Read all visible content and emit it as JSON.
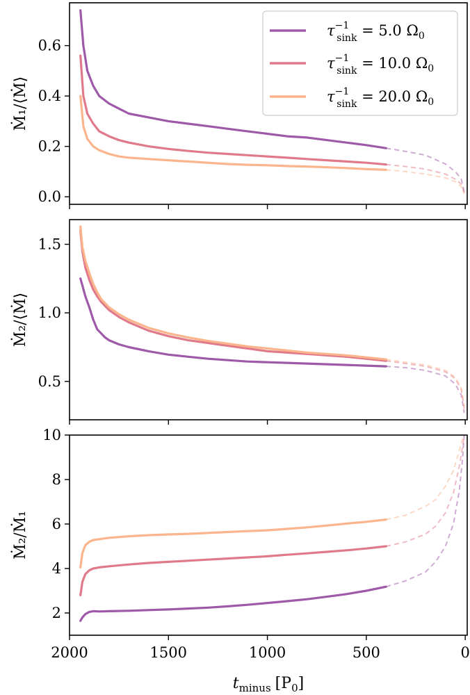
{
  "colors": {
    "tau_5": "#9e5aa8",
    "tau_10": "#e07a8a",
    "tau_20": "#fbb48c",
    "axes": "#000000",
    "background": "#ffffff"
  },
  "chart_data": [
    {
      "type": "line",
      "panel": "top",
      "ylabel": "Ṁ₁/⟨Ṁ⟩",
      "xlim": [
        2000,
        -10
      ],
      "ylim": [
        -0.03,
        0.77
      ],
      "yticks": [
        0.0,
        0.2,
        0.4,
        0.6
      ],
      "ytick_labels": [
        "0.0",
        "0.2",
        "0.4",
        "0.6"
      ],
      "xticks": [
        2000,
        1500,
        1000,
        500,
        0
      ],
      "xtick_labels": [],
      "dashed_segment_start_x": 400,
      "series": [
        {
          "name": "τ_sink⁻¹ = 5.0 Ω₀",
          "color_key": "tau_5",
          "x": [
            1945,
            1930,
            1910,
            1880,
            1850,
            1800,
            1750,
            1700,
            1600,
            1500,
            1400,
            1300,
            1200,
            1100,
            1000,
            900,
            800,
            700,
            600,
            500,
            400,
            300,
            200,
            100,
            50,
            20,
            5
          ],
          "y": [
            0.74,
            0.6,
            0.5,
            0.44,
            0.4,
            0.37,
            0.35,
            0.33,
            0.315,
            0.3,
            0.29,
            0.28,
            0.27,
            0.26,
            0.25,
            0.24,
            0.235,
            0.225,
            0.215,
            0.205,
            0.193,
            0.18,
            0.165,
            0.13,
            0.1,
            0.07,
            0.02
          ]
        },
        {
          "name": "τ_sink⁻¹ = 10.0 Ω₀",
          "color_key": "tau_10",
          "x": [
            1945,
            1930,
            1910,
            1880,
            1850,
            1800,
            1750,
            1700,
            1600,
            1500,
            1400,
            1300,
            1200,
            1100,
            1000,
            900,
            800,
            700,
            600,
            500,
            400,
            300,
            200,
            100,
            50,
            20,
            5
          ],
          "y": [
            0.56,
            0.4,
            0.33,
            0.29,
            0.26,
            0.24,
            0.225,
            0.215,
            0.2,
            0.19,
            0.182,
            0.175,
            0.17,
            0.165,
            0.16,
            0.155,
            0.15,
            0.145,
            0.14,
            0.135,
            0.128,
            0.12,
            0.11,
            0.09,
            0.07,
            0.05,
            0.015
          ]
        },
        {
          "name": "τ_sink⁻¹ = 20.0 Ω₀",
          "color_key": "tau_20",
          "x": [
            1945,
            1930,
            1910,
            1880,
            1850,
            1800,
            1750,
            1700,
            1600,
            1500,
            1400,
            1300,
            1200,
            1100,
            1000,
            900,
            800,
            700,
            600,
            500,
            400,
            300,
            200,
            100,
            50,
            20,
            5
          ],
          "y": [
            0.4,
            0.28,
            0.23,
            0.2,
            0.185,
            0.17,
            0.16,
            0.155,
            0.15,
            0.145,
            0.14,
            0.135,
            0.13,
            0.127,
            0.125,
            0.122,
            0.12,
            0.117,
            0.114,
            0.11,
            0.107,
            0.1,
            0.09,
            0.075,
            0.06,
            0.04,
            0.012
          ]
        }
      ],
      "legend": {
        "placement": "top-right",
        "entries": [
          {
            "label_main": "τ",
            "label_sup": "−1",
            "label_sub": "sink",
            "label_rest": " = 5.0 Ω",
            "label_rest_sub": "0",
            "color_key": "tau_5"
          },
          {
            "label_main": "τ",
            "label_sup": "−1",
            "label_sub": "sink",
            "label_rest": " = 10.0 Ω",
            "label_rest_sub": "0",
            "color_key": "tau_10"
          },
          {
            "label_main": "τ",
            "label_sup": "−1",
            "label_sub": "sink",
            "label_rest": " = 20.0 Ω",
            "label_rest_sub": "0",
            "color_key": "tau_20"
          }
        ]
      }
    },
    {
      "type": "line",
      "panel": "middle",
      "ylabel": "Ṁ₂/⟨Ṁ⟩",
      "xlim": [
        2000,
        -10
      ],
      "ylim": [
        0.22,
        1.68
      ],
      "yticks": [
        0.5,
        1.0,
        1.5
      ],
      "ytick_labels": [
        "0.5",
        "1.0",
        "1.5"
      ],
      "xticks": [
        2000,
        1500,
        1000,
        500,
        0
      ],
      "xtick_labels": [],
      "dashed_segment_start_x": 400,
      "series": [
        {
          "name": "τ_sink⁻¹ = 5.0 Ω₀",
          "color_key": "tau_5",
          "x": [
            1945,
            1935,
            1920,
            1900,
            1880,
            1860,
            1840,
            1820,
            1800,
            1750,
            1700,
            1600,
            1500,
            1400,
            1300,
            1200,
            1100,
            1000,
            900,
            800,
            700,
            600,
            500,
            400,
            300,
            200,
            100,
            50,
            20,
            5
          ],
          "y": [
            1.25,
            1.2,
            1.12,
            1.04,
            0.95,
            0.88,
            0.85,
            0.82,
            0.8,
            0.77,
            0.75,
            0.72,
            0.695,
            0.68,
            0.665,
            0.655,
            0.645,
            0.64,
            0.635,
            0.63,
            0.625,
            0.62,
            0.615,
            0.61,
            0.6,
            0.58,
            0.54,
            0.48,
            0.4,
            0.27
          ]
        },
        {
          "name": "τ_sink⁻¹ = 10.0 Ω₀",
          "color_key": "tau_10",
          "x": [
            1945,
            1935,
            1920,
            1900,
            1880,
            1860,
            1840,
            1820,
            1800,
            1750,
            1700,
            1600,
            1500,
            1400,
            1300,
            1200,
            1100,
            1000,
            900,
            800,
            700,
            600,
            500,
            400,
            300,
            200,
            100,
            50,
            20,
            5
          ],
          "y": [
            1.6,
            1.45,
            1.33,
            1.24,
            1.17,
            1.12,
            1.08,
            1.05,
            1.02,
            0.97,
            0.93,
            0.87,
            0.83,
            0.8,
            0.78,
            0.76,
            0.74,
            0.72,
            0.71,
            0.7,
            0.69,
            0.68,
            0.665,
            0.65,
            0.63,
            0.61,
            0.57,
            0.52,
            0.44,
            0.3
          ]
        },
        {
          "name": "τ_sink⁻¹ = 20.0 Ω₀",
          "color_key": "tau_20",
          "x": [
            1945,
            1935,
            1920,
            1900,
            1880,
            1860,
            1840,
            1820,
            1800,
            1750,
            1700,
            1600,
            1500,
            1400,
            1300,
            1200,
            1100,
            1000,
            900,
            800,
            700,
            600,
            500,
            400,
            300,
            200,
            100,
            50,
            20,
            5
          ],
          "y": [
            1.63,
            1.48,
            1.38,
            1.29,
            1.21,
            1.15,
            1.1,
            1.07,
            1.04,
            0.99,
            0.95,
            0.89,
            0.85,
            0.82,
            0.795,
            0.775,
            0.755,
            0.74,
            0.725,
            0.71,
            0.7,
            0.69,
            0.675,
            0.66,
            0.64,
            0.62,
            0.58,
            0.53,
            0.45,
            0.32
          ]
        }
      ]
    },
    {
      "type": "line",
      "panel": "bottom",
      "ylabel": "Ṁ₂/Ṁ₁",
      "xlabel_main": "t",
      "xlabel_sub": "minus",
      "xlabel_unit_open": "[P",
      "xlabel_unit_sub": "0",
      "xlabel_unit_close": "]",
      "xlim": [
        2000,
        -10
      ],
      "ylim": [
        1.0,
        10.0
      ],
      "yticks": [
        2,
        4,
        6,
        8,
        10
      ],
      "ytick_labels": [
        "2",
        "4",
        "6",
        "8",
        "10"
      ],
      "xticks": [
        2000,
        1500,
        1000,
        500,
        0
      ],
      "xtick_labels": [
        "2000",
        "1500",
        "1000",
        "500",
        "0"
      ],
      "dashed_segment_start_x": 400,
      "series": [
        {
          "name": "τ_sink⁻¹ = 5.0 Ω₀",
          "color_key": "tau_5",
          "x": [
            1945,
            1935,
            1920,
            1900,
            1880,
            1850,
            1800,
            1700,
            1600,
            1500,
            1400,
            1300,
            1200,
            1100,
            1000,
            900,
            800,
            700,
            600,
            500,
            400,
            300,
            200,
            150,
            100,
            60,
            30,
            15,
            5
          ],
          "y": [
            1.65,
            1.8,
            1.95,
            2.05,
            2.08,
            2.07,
            2.08,
            2.1,
            2.13,
            2.16,
            2.2,
            2.24,
            2.3,
            2.37,
            2.45,
            2.53,
            2.62,
            2.73,
            2.85,
            3.0,
            3.18,
            3.45,
            3.85,
            4.3,
            5.0,
            6.0,
            7.5,
            8.8,
            10.0
          ]
        },
        {
          "name": "τ_sink⁻¹ = 10.0 Ω₀",
          "color_key": "tau_10",
          "x": [
            1945,
            1935,
            1920,
            1900,
            1880,
            1850,
            1800,
            1700,
            1600,
            1500,
            1400,
            1300,
            1200,
            1100,
            1000,
            900,
            800,
            700,
            600,
            500,
            400,
            300,
            200,
            150,
            100,
            60,
            30,
            15,
            5
          ],
          "y": [
            2.8,
            3.4,
            3.75,
            3.92,
            4.0,
            4.05,
            4.1,
            4.18,
            4.25,
            4.3,
            4.35,
            4.4,
            4.45,
            4.5,
            4.55,
            4.62,
            4.68,
            4.75,
            4.82,
            4.9,
            5.0,
            5.2,
            5.55,
            5.9,
            6.5,
            7.4,
            8.6,
            9.4,
            10.0
          ]
        },
        {
          "name": "τ_sink⁻¹ = 20.0 Ω₀",
          "color_key": "tau_20",
          "x": [
            1945,
            1935,
            1920,
            1900,
            1880,
            1850,
            1800,
            1700,
            1600,
            1500,
            1400,
            1300,
            1200,
            1100,
            1000,
            900,
            800,
            700,
            600,
            500,
            400,
            300,
            200,
            150,
            100,
            60,
            30,
            15,
            5
          ],
          "y": [
            4.05,
            4.7,
            5.05,
            5.2,
            5.28,
            5.32,
            5.38,
            5.45,
            5.5,
            5.53,
            5.56,
            5.6,
            5.64,
            5.68,
            5.72,
            5.78,
            5.85,
            5.93,
            6.02,
            6.1,
            6.2,
            6.4,
            6.8,
            7.1,
            7.7,
            8.4,
            9.3,
            9.8,
            10.0
          ]
        }
      ]
    }
  ]
}
